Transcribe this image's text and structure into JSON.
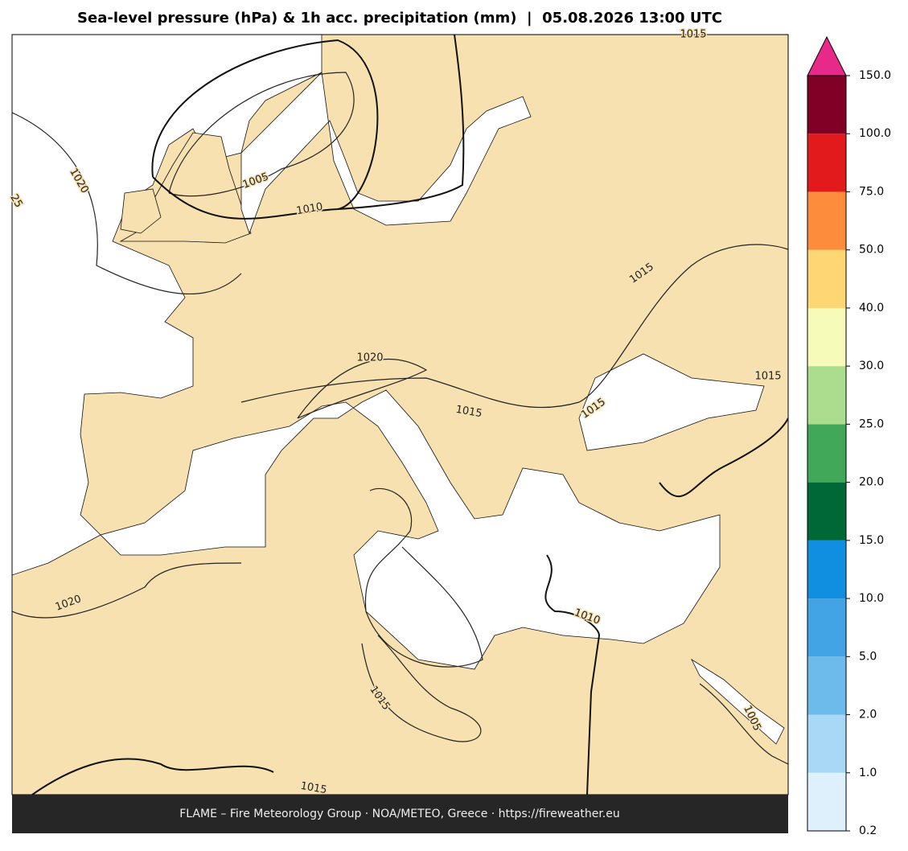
{
  "title": "Sea-level pressure (hPa) & 1h acc. precipitation (mm)  |  05.08.2026 13:00 UTC",
  "contour_labels": [
    "1015",
    "1020",
    "25",
    "1005",
    "1010",
    "1020",
    "1015",
    "1015",
    "1015",
    "1015",
    "1020",
    "1010",
    "1015",
    "1005",
    "1015"
  ],
  "colorbar": {
    "ticks": [
      0.2,
      {
        "value": 1,
        "label": "1.0"
      },
      {
        "value": 2,
        "label": "2.0"
      },
      {
        "value": 5,
        "label": "5.0"
      },
      {
        "value": 10,
        "label": "10.0"
      },
      {
        "value": 15,
        "label": "15.0"
      },
      {
        "value": 20,
        "label": "20.0"
      },
      {
        "value": 25,
        "label": "25.0"
      },
      {
        "value": 30,
        "label": "30.0"
      },
      {
        "value": 40,
        "label": "40.0"
      },
      {
        "value": 50,
        "label": "50.0"
      },
      {
        "value": 75,
        "label": "75.0"
      },
      {
        "value": 100,
        "label": "100.0"
      },
      {
        "value": 150,
        "label": "150.0"
      }
    ],
    "colors": [
      "#ddf0fc",
      "#a8d8f5",
      "#6dbbeb",
      "#42a4e4",
      "#108fe0",
      "#006837",
      "#41a85a",
      "#acdd8e",
      "#f7fbb9",
      "#fed673",
      "#fd8d3c",
      "#e31a1c",
      "#800026"
    ],
    "extend_color": "#e7298a"
  },
  "footer": "FLAME – Fire Meteorology Group · NOA/METEO, Greece · https://fireweather.eu"
}
